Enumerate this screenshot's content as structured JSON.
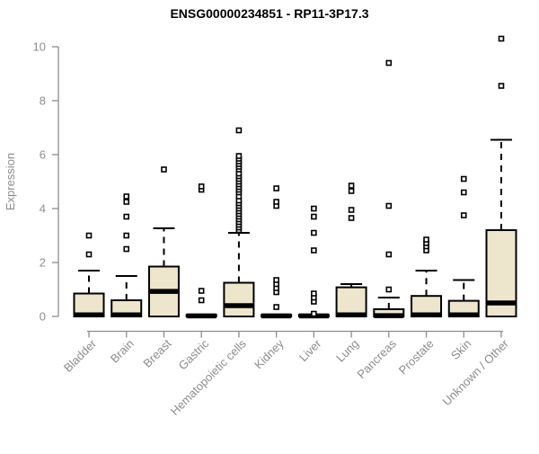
{
  "title": "ENSG00000234851 - RP11-3P17.3",
  "colors": {
    "box_fill": "#EDE6CC",
    "box_stroke": "#000000",
    "median_color": "#000000",
    "axis_color": "#8C8C8C",
    "label_color": "#8C8C8C",
    "title_color": "#000000",
    "background": "#FFFFFF"
  },
  "chart_data": {
    "type": "boxplot",
    "title": "ENSG00000234851 - RP11-3P17.3",
    "xlabel": "",
    "ylabel": "Expression",
    "ylim": [
      0,
      10
    ],
    "yticks": [
      0,
      2,
      4,
      6,
      8,
      10
    ],
    "grid": false,
    "legend": null,
    "categories": [
      "Bladder",
      "Brain",
      "Breast",
      "Gastric",
      "Hematopoietic cells",
      "Kidney",
      "Liver",
      "Lung",
      "Pancreas",
      "Prostate",
      "Skin",
      "Unknown / Other"
    ],
    "series": [
      {
        "name": "Bladder",
        "whisker_low": 0,
        "q1": 0,
        "median": 0.06,
        "q3": 0.85,
        "whisker_high": 1.7,
        "outliers": [
          2.3,
          3.0
        ]
      },
      {
        "name": "Brain",
        "whisker_low": 0,
        "q1": 0,
        "median": 0.06,
        "q3": 0.6,
        "whisker_high": 1.5,
        "outliers": [
          2.5,
          3.0,
          3.7,
          4.25,
          4.45
        ]
      },
      {
        "name": "Breast",
        "whisker_low": 0,
        "q1": 0,
        "median": 0.93,
        "q3": 1.85,
        "whisker_high": 3.27,
        "outliers": [
          5.45
        ]
      },
      {
        "name": "Gastric",
        "whisker_low": 0,
        "q1": 0,
        "median": 0.02,
        "q3": 0.06,
        "whisker_high": 0.06,
        "outliers": [
          0.6,
          0.95,
          4.7,
          4.82
        ]
      },
      {
        "name": "Hematopoietic cells",
        "whisker_low": 0,
        "q1": 0,
        "median": 0.4,
        "q3": 1.25,
        "whisker_high": 3.1,
        "outliers": [
          3.2,
          3.3,
          3.4,
          3.5,
          3.6,
          3.7,
          3.8,
          3.9,
          4.0,
          4.1,
          4.2,
          4.3,
          4.45,
          4.6,
          4.7,
          4.8,
          4.9,
          5.0,
          5.1,
          5.2,
          5.3,
          5.45,
          5.55,
          5.65,
          5.75,
          5.85,
          5.95,
          6.9
        ]
      },
      {
        "name": "Kidney",
        "whisker_low": 0,
        "q1": 0,
        "median": 0.02,
        "q3": 0.06,
        "whisker_high": 0.06,
        "outliers": [
          0.35,
          0.9,
          1.05,
          1.2,
          1.35,
          4.1,
          4.25,
          4.75
        ]
      },
      {
        "name": "Liver",
        "whisker_low": 0,
        "q1": 0,
        "median": 0.02,
        "q3": 0.06,
        "whisker_high": 0.06,
        "outliers": [
          0.1,
          0.55,
          0.7,
          0.85,
          2.45,
          3.1,
          3.7,
          4.0
        ]
      },
      {
        "name": "Lung",
        "whisker_low": 0,
        "q1": 0,
        "median": 0.06,
        "q3": 1.08,
        "whisker_high": 1.2,
        "outliers": [
          3.65,
          3.95,
          4.65,
          4.85
        ]
      },
      {
        "name": "Pancreas",
        "whisker_low": 0,
        "q1": 0,
        "median": 0.03,
        "q3": 0.27,
        "whisker_high": 0.7,
        "outliers": [
          1.0,
          2.3,
          4.1,
          9.4
        ]
      },
      {
        "name": "Prostate",
        "whisker_low": 0,
        "q1": 0,
        "median": 0.06,
        "q3": 0.76,
        "whisker_high": 1.7,
        "outliers": [
          2.45,
          2.6,
          2.72,
          2.85
        ]
      },
      {
        "name": "Skin",
        "whisker_low": 0,
        "q1": 0,
        "median": 0.06,
        "q3": 0.58,
        "whisker_high": 1.35,
        "outliers": [
          3.75,
          4.6,
          5.1
        ]
      },
      {
        "name": "Unknown / Other",
        "whisker_low": 0,
        "q1": 0,
        "median": 0.5,
        "q3": 3.2,
        "whisker_high": 6.55,
        "outliers": [
          8.55,
          10.3
        ]
      }
    ]
  }
}
